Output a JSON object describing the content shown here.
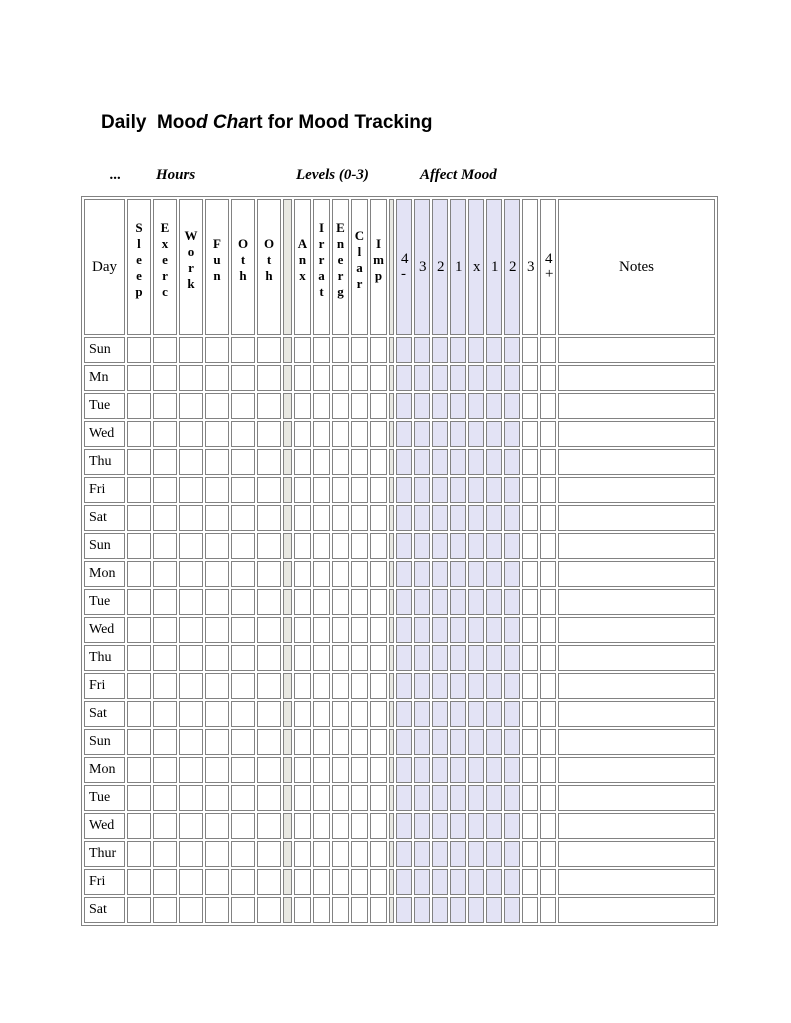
{
  "title": {
    "part1": "Daily  Moo",
    "part2_italic": "d Cha",
    "part3": "rt for Mood Tracking"
  },
  "group_headers": {
    "day": "...",
    "hours": "Hours",
    "levels": "Levels (0-3)",
    "affect": "Affect Mood"
  },
  "table": {
    "day_header": "Day",
    "hours_columns": [
      "Sleep",
      "Exerc",
      "Work",
      "Fun",
      "Oth",
      "Oth"
    ],
    "levels_columns": [
      "Anx",
      "Irrat",
      "Energ",
      "Clar",
      "Imp"
    ],
    "affect_columns": [
      {
        "label": "4",
        "sub": "-"
      },
      {
        "label": "3"
      },
      {
        "label": "2"
      },
      {
        "label": "1"
      },
      {
        "label": "x"
      },
      {
        "label": "1"
      },
      {
        "label": "2"
      },
      {
        "label": "3"
      },
      {
        "label": "4",
        "sub": "+"
      }
    ],
    "affect_shaded_count": 7,
    "notes_header": "Notes",
    "days": [
      "Sun",
      "Mn",
      "Tue",
      "Wed",
      "Thu",
      "Fri",
      "Sat",
      "Sun",
      "Mon",
      "Tue",
      "Wed",
      "Thu",
      "Fri",
      "Sat",
      "Sun",
      "Mon",
      "Tue",
      "Wed",
      "Thur",
      "Fri",
      "Sat"
    ]
  },
  "colors": {
    "affect_shade": "#e3e3f5",
    "separator_shade": "#e8e8e2",
    "table_border": "#828282"
  }
}
